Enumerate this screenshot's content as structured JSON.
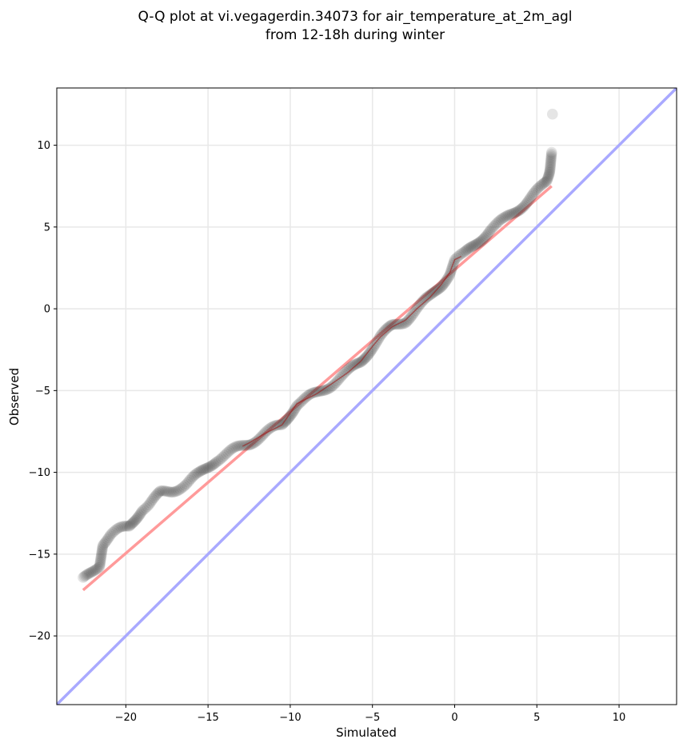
{
  "chart_data": {
    "type": "scatter",
    "title": "Q-Q plot at vi.vegagerdin.34073 for air_temperature_at_2m_agl",
    "subtitle": "from 12-18h during winter",
    "xlabel": "Simulated",
    "ylabel": "Observed",
    "xlim": [
      -24.2,
      13.5
    ],
    "ylim": [
      -24.2,
      13.5
    ],
    "xticks": [
      -20,
      -15,
      -10,
      -5,
      0,
      5,
      10
    ],
    "yticks": [
      -20,
      -15,
      -10,
      -5,
      0,
      5,
      10
    ],
    "grid": true,
    "colors": {
      "points": "#333333",
      "fit_line": "#ff9a9a",
      "identity_line": "#a9a9ff",
      "inner_trend": "#a01010",
      "grid": "#e8e8e8"
    },
    "fit_line": {
      "x": [
        -22.6,
        5.9
      ],
      "y": [
        -17.2,
        7.5
      ]
    },
    "identity_line": {
      "x": [
        -24.2,
        13.5
      ],
      "y": [
        -24.2,
        13.5
      ]
    },
    "anchors": {
      "x": [
        -22.6,
        -21.6,
        -21.4,
        -20.9,
        -20.5,
        -19.8,
        -19.0,
        -18.6,
        -17.9,
        -17.2,
        -16.3,
        -15.5,
        -14.5,
        -13.5,
        -12.5,
        -11.5,
        -10.5,
        -9.6,
        -8.4,
        -7.5,
        -6.5,
        -5.7,
        -5.0,
        -4.5,
        -3.8,
        -3.0,
        -2.3,
        -1.5,
        -0.8,
        -0.3,
        0.0,
        0.6,
        1.4,
        2.2,
        3.0,
        3.6,
        4.3,
        4.8,
        5.3,
        5.6,
        5.75,
        5.8,
        5.9
      ],
      "y": [
        -16.6,
        -15.6,
        -14.3,
        -13.8,
        -13.6,
        -13.3,
        -12.2,
        -12.0,
        -11.3,
        -11.1,
        -10.7,
        -10.1,
        -9.2,
        -8.7,
        -8.2,
        -7.6,
        -7.1,
        -5.8,
        -5.2,
        -4.6,
        -3.9,
        -3.2,
        -2.3,
        -1.7,
        -1.1,
        -0.7,
        0.0,
        0.7,
        1.5,
        2.2,
        3.0,
        3.3,
        4.1,
        4.9,
        5.4,
        5.9,
        6.5,
        7.0,
        7.4,
        7.7,
        8.2,
        8.5,
        9.6
      ]
    },
    "top_outlier": {
      "x": 5.95,
      "y": 11.9
    }
  }
}
